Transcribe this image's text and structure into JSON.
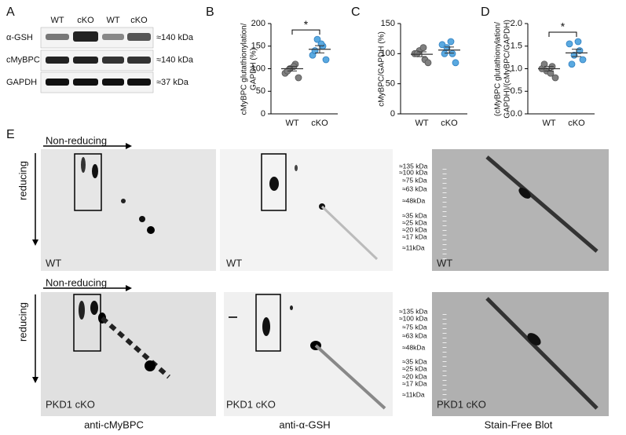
{
  "panel_labels": [
    "A",
    "B",
    "C",
    "D",
    "E"
  ],
  "panel_a": {
    "lanes": [
      "WT",
      "cKO",
      "WT",
      "cKO"
    ],
    "rows": [
      {
        "name": "α-GSH",
        "size": "≈140 kDa"
      },
      {
        "name": "cMyBPC",
        "size": "≈140 kDa"
      },
      {
        "name": "GAPDH",
        "size": "≈37 kDa"
      }
    ]
  },
  "chart_data": [
    {
      "type": "scatter",
      "ylabel": [
        "cMyBPC glutathionylation/",
        "GAPDH (%)"
      ],
      "categories": [
        "WT",
        "cKO"
      ],
      "points": [
        [
          90,
          110,
          100,
          80,
          95,
          105
        ],
        [
          130,
          150,
          165,
          120,
          140,
          155
        ]
      ],
      "means": [
        100,
        143
      ],
      "sems": [
        5,
        8
      ],
      "colors": [
        "#7f7f7f",
        "#5aa9e0"
      ],
      "ylim": [
        0,
        200
      ],
      "yticks": [
        0,
        50,
        100,
        150,
        200
      ],
      "significance": "*"
    },
    {
      "type": "scatter",
      "ylabel": [
        "cMyBPC/GAPDH (%)"
      ],
      "categories": [
        "WT",
        "cKO"
      ],
      "points": [
        [
          100,
          90,
          105,
          85,
          100,
          110
        ],
        [
          115,
          100,
          110,
          85,
          100,
          120
        ]
      ],
      "means": [
        99,
        106
      ],
      "sems": [
        4,
        5
      ],
      "colors": [
        "#7f7f7f",
        "#5aa9e0"
      ],
      "ylim": [
        0,
        150
      ],
      "yticks": [
        0,
        50,
        100,
        150
      ]
    },
    {
      "type": "scatter",
      "ylabel": [
        "(cMyBPC glutathionylation/",
        "GAPDH)/(cMyBPC/GAPDH)"
      ],
      "categories": [
        "WT",
        "cKO"
      ],
      "points": [
        [
          1.0,
          1.05,
          0.95,
          0.8,
          1.1,
          0.9
        ],
        [
          1.55,
          1.4,
          1.3,
          1.2,
          1.1,
          1.6
        ]
      ],
      "means": [
        1.0,
        1.35
      ],
      "sems": [
        0.05,
        0.08
      ],
      "colors": [
        "#7f7f7f",
        "#5aa9e0"
      ],
      "ylim": [
        0,
        2
      ],
      "yticks": [
        {
          "value": 0,
          "label": "0.0"
        },
        {
          "value": 0.5,
          "label": "0.5"
        },
        {
          "value": 1,
          "label": "1.0"
        },
        {
          "value": 1.5,
          "label": "1.5"
        },
        {
          "value": 2,
          "label": "2.0"
        }
      ],
      "significance": "*"
    }
  ],
  "panel_e": {
    "direction_x": "Non-reducing",
    "direction_y": "reducing",
    "samples": [
      "WT",
      "PKD1 cKO"
    ],
    "markers": [
      "≈135 kDa",
      "≈100 kDa",
      "≈75 kDa",
      "≈63 kDa",
      "≈48kDa",
      "≈35 kDa",
      "≈25 kDa",
      "≈20 kDa",
      "≈17 kDa",
      "≈11kDa"
    ],
    "columns": [
      "anti-cMyBPC",
      "anti-α-GSH",
      "Stain-Free Blot"
    ]
  }
}
